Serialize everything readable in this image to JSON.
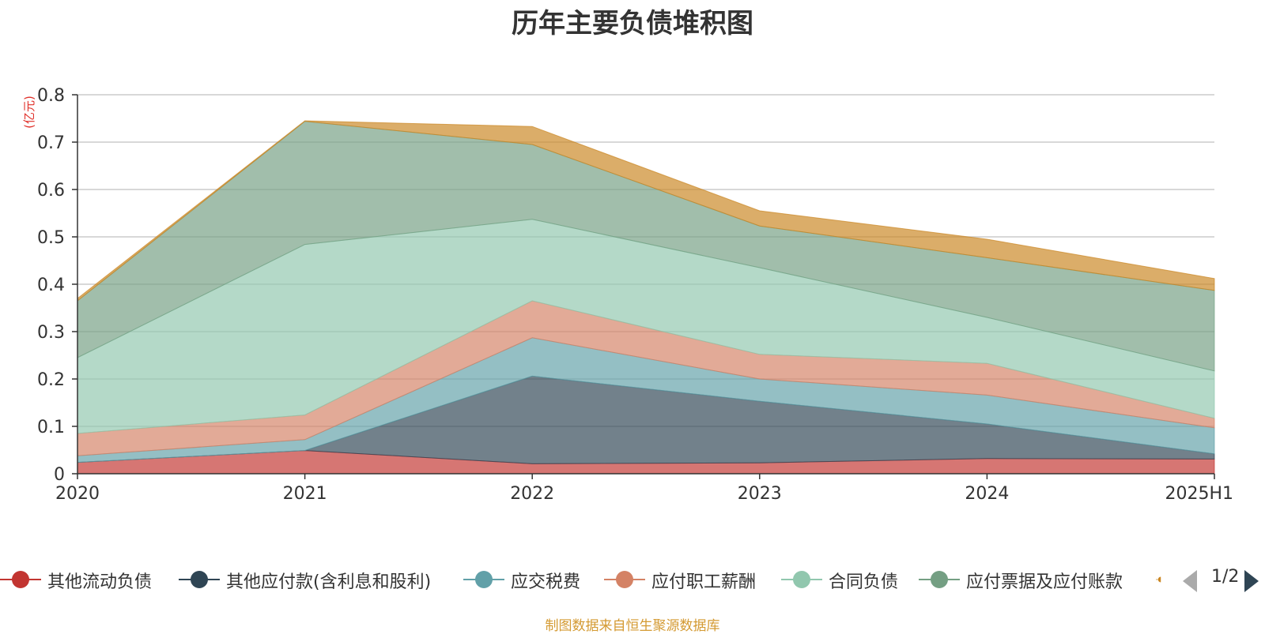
{
  "title": "历年主要负债堆积图",
  "unit": "(亿元)",
  "source": "制图数据来自恒生聚源数据库",
  "pager": "1/2",
  "chart_data": {
    "type": "area",
    "stacked": true,
    "title": "历年主要负债堆积图",
    "ylabel": "(亿元)",
    "categories": [
      "2020",
      "2021",
      "2022",
      "2023",
      "2024",
      "2025H1"
    ],
    "ylim": [
      0,
      0.8
    ],
    "yticks": [
      "0",
      "0.1",
      "0.2",
      "0.3",
      "0.4",
      "0.5",
      "0.6",
      "0.7",
      "0.8"
    ],
    "grid": true,
    "legend_position": "bottom",
    "series": [
      {
        "name": "其他流动负债",
        "color": "#c23531",
        "values": [
          0.024,
          0.049,
          0.021,
          0.023,
          0.032,
          0.031
        ]
      },
      {
        "name": "其他应付款(含利息和股利)",
        "color": "#2f4554",
        "values": [
          0.0,
          0.0,
          0.185,
          0.13,
          0.073,
          0.011
        ]
      },
      {
        "name": "应交税费",
        "color": "#61a0a8",
        "values": [
          0.014,
          0.023,
          0.081,
          0.047,
          0.061,
          0.055
        ]
      },
      {
        "name": "应付职工薪酬",
        "color": "#d48265",
        "values": [
          0.047,
          0.052,
          0.078,
          0.052,
          0.067,
          0.02
        ]
      },
      {
        "name": "合同负债",
        "color": "#91c7ae",
        "values": [
          0.16,
          0.36,
          0.172,
          0.183,
          0.097,
          0.1
        ]
      },
      {
        "name": "应付票据及应付账款",
        "color": "#749f83",
        "values": [
          0.12,
          0.26,
          0.158,
          0.088,
          0.126,
          0.17
        ]
      },
      {
        "name": "",
        "color": "#ca8622",
        "values": [
          0.005,
          0.001,
          0.038,
          0.032,
          0.039,
          0.025
        ]
      }
    ]
  }
}
